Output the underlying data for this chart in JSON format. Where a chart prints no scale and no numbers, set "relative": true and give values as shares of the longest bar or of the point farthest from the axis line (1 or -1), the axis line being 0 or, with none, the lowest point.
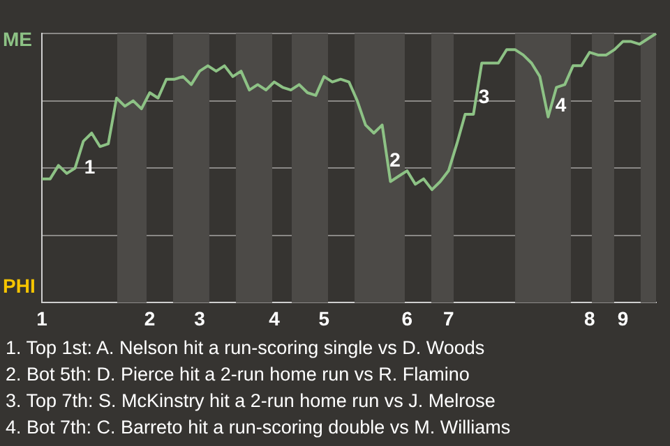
{
  "chart_data": {
    "type": "line",
    "categories": [
      "1",
      null,
      null,
      null,
      null,
      null,
      null,
      null,
      null,
      null,
      null,
      null,
      null,
      "2",
      null,
      null,
      null,
      null,
      null,
      "3",
      null,
      null,
      null,
      null,
      null,
      null,
      null,
      null,
      "4",
      null,
      null,
      null,
      null,
      null,
      "5",
      null,
      null,
      null,
      null,
      null,
      null,
      null,
      null,
      null,
      "6",
      null,
      null,
      null,
      null,
      "7",
      null,
      null,
      null,
      null,
      null,
      null,
      null,
      null,
      null,
      null,
      null,
      null,
      null,
      null,
      null,
      null,
      "8",
      null,
      null,
      null,
      "9",
      null,
      null,
      null,
      null
    ],
    "relative": true,
    "series": [
      {
        "color": "#8dc285",
        "values": [
          0.46,
          0.46,
          0.51,
          0.48,
          0.5,
          0.6,
          0.63,
          0.58,
          0.59,
          0.76,
          0.73,
          0.75,
          0.72,
          0.78,
          0.76,
          0.83,
          0.83,
          0.84,
          0.81,
          0.86,
          0.88,
          0.86,
          0.88,
          0.84,
          0.86,
          0.79,
          0.81,
          0.79,
          0.82,
          0.8,
          0.79,
          0.81,
          0.78,
          0.77,
          0.84,
          0.82,
          0.83,
          0.82,
          0.75,
          0.66,
          0.63,
          0.66,
          0.45,
          0.47,
          0.49,
          0.44,
          0.46,
          0.42,
          0.45,
          0.49,
          0.59,
          0.7,
          0.7,
          0.89,
          0.89,
          0.89,
          0.94,
          0.94,
          0.92,
          0.89,
          0.84,
          0.69,
          0.8,
          0.81,
          0.88,
          0.88,
          0.93,
          0.92,
          0.92,
          0.94,
          0.97,
          0.97,
          0.96,
          0.98,
          1.0
        ]
      }
    ],
    "grid": "y",
    "marker": "none",
    "annotations": [
      "ME",
      "PHI",
      "1",
      "2",
      "3",
      "4",
      "1. Top 1st: A. Nelson hit a run-scoring single vs D. Woods",
      "2. Bot 5th: D. Pierce hit a 2-run home run vs R. Flamino",
      "3. Top 7th: S. McKinstry hit a 2-run home run vs J. Melrose",
      "4. Bot 7th: C. Barreto hit a run-scoring double vs M. Williams"
    ]
  }
}
